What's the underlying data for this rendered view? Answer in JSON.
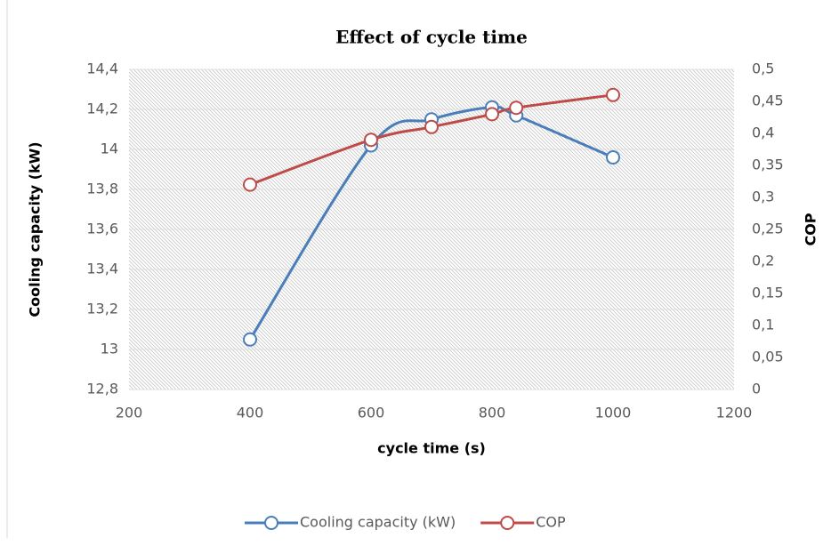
{
  "chart_data": {
    "type": "line",
    "title": "Effect of cycle time",
    "x_label": "cycle time (s)",
    "y_label": "Cooling capacity (kW)",
    "y2_label": "COP",
    "x": [
      400,
      600,
      700,
      800,
      840,
      1000
    ],
    "series": [
      {
        "name": "Cooling capacity (kW)",
        "color": "#4a7ebb",
        "values": [
          13.05,
          14.02,
          14.15,
          14.21,
          14.17,
          13.96
        ]
      },
      {
        "name": "COP",
        "color": "#be4b48",
        "axis": "y2",
        "values": [
          0.32,
          0.39,
          0.41,
          0.43,
          0.44,
          0.46
        ]
      }
    ],
    "xlim": [
      200,
      1200
    ],
    "xticks": [
      200,
      400,
      600,
      800,
      1000,
      1200
    ],
    "ylim": [
      12.8,
      14.4
    ],
    "yticks": [
      {
        "value": 12.8,
        "label": "12,8"
      },
      13,
      {
        "value": 13.2,
        "label": "13,2"
      },
      {
        "value": 13.4,
        "label": "13,4"
      },
      {
        "value": 13.6,
        "label": "13,6"
      },
      {
        "value": 13.8,
        "label": "13,8"
      },
      14,
      {
        "value": 14.2,
        "label": "14,2"
      },
      {
        "value": 14.4,
        "label": "14,4"
      }
    ],
    "y2lim": [
      0,
      0.5
    ],
    "y2ticks": [
      0,
      {
        "value": 0.05,
        "label": "0,05"
      },
      {
        "value": 0.1,
        "label": "0,1"
      },
      {
        "value": 0.15,
        "label": "0,15"
      },
      {
        "value": 0.2,
        "label": "0,2"
      },
      {
        "value": 0.25,
        "label": "0,25"
      },
      {
        "value": 0.3,
        "label": "0,3"
      },
      {
        "value": 0.35,
        "label": "0,35"
      },
      {
        "value": 0.4,
        "label": "0,4"
      },
      {
        "value": 0.45,
        "label": "0,45"
      },
      {
        "value": 0.5,
        "label": "0,5"
      }
    ],
    "smooth": true,
    "legend": "bottom"
  }
}
